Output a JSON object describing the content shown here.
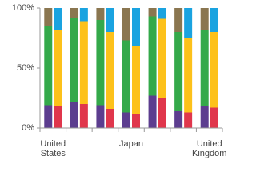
{
  "chart_data": {
    "type": "stacked_bar_100",
    "categories": [
      "United States",
      null,
      null,
      "Japan",
      null,
      null,
      "United Kingdom"
    ],
    "series": [
      {
        "stack": 0,
        "color": "#5c3d8f",
        "values": [
          19,
          22,
          19,
          13,
          27,
          14,
          18
        ]
      },
      {
        "stack": 0,
        "color": "#34a94a",
        "values": [
          66,
          70,
          71,
          60,
          66,
          66,
          64
        ]
      },
      {
        "stack": 0,
        "color": "#8a7650",
        "values": [
          15,
          8,
          10,
          27,
          7,
          20,
          18
        ]
      },
      {
        "stack": 1,
        "color": "#e0364c",
        "values": [
          18,
          20,
          16,
          12,
          25,
          13,
          17
        ]
      },
      {
        "stack": 1,
        "color": "#fdc11a",
        "values": [
          64,
          69,
          64,
          56,
          66,
          62,
          63
        ]
      },
      {
        "stack": 1,
        "color": "#1aa3e0",
        "values": [
          18,
          11,
          20,
          32,
          9,
          25,
          20
        ]
      }
    ],
    "ylim": [
      0,
      100
    ],
    "yticks": [
      {
        "value": 0,
        "label": "0%"
      },
      {
        "value": 50,
        "label": "50%"
      },
      {
        "value": 100,
        "label": "100%"
      }
    ]
  }
}
